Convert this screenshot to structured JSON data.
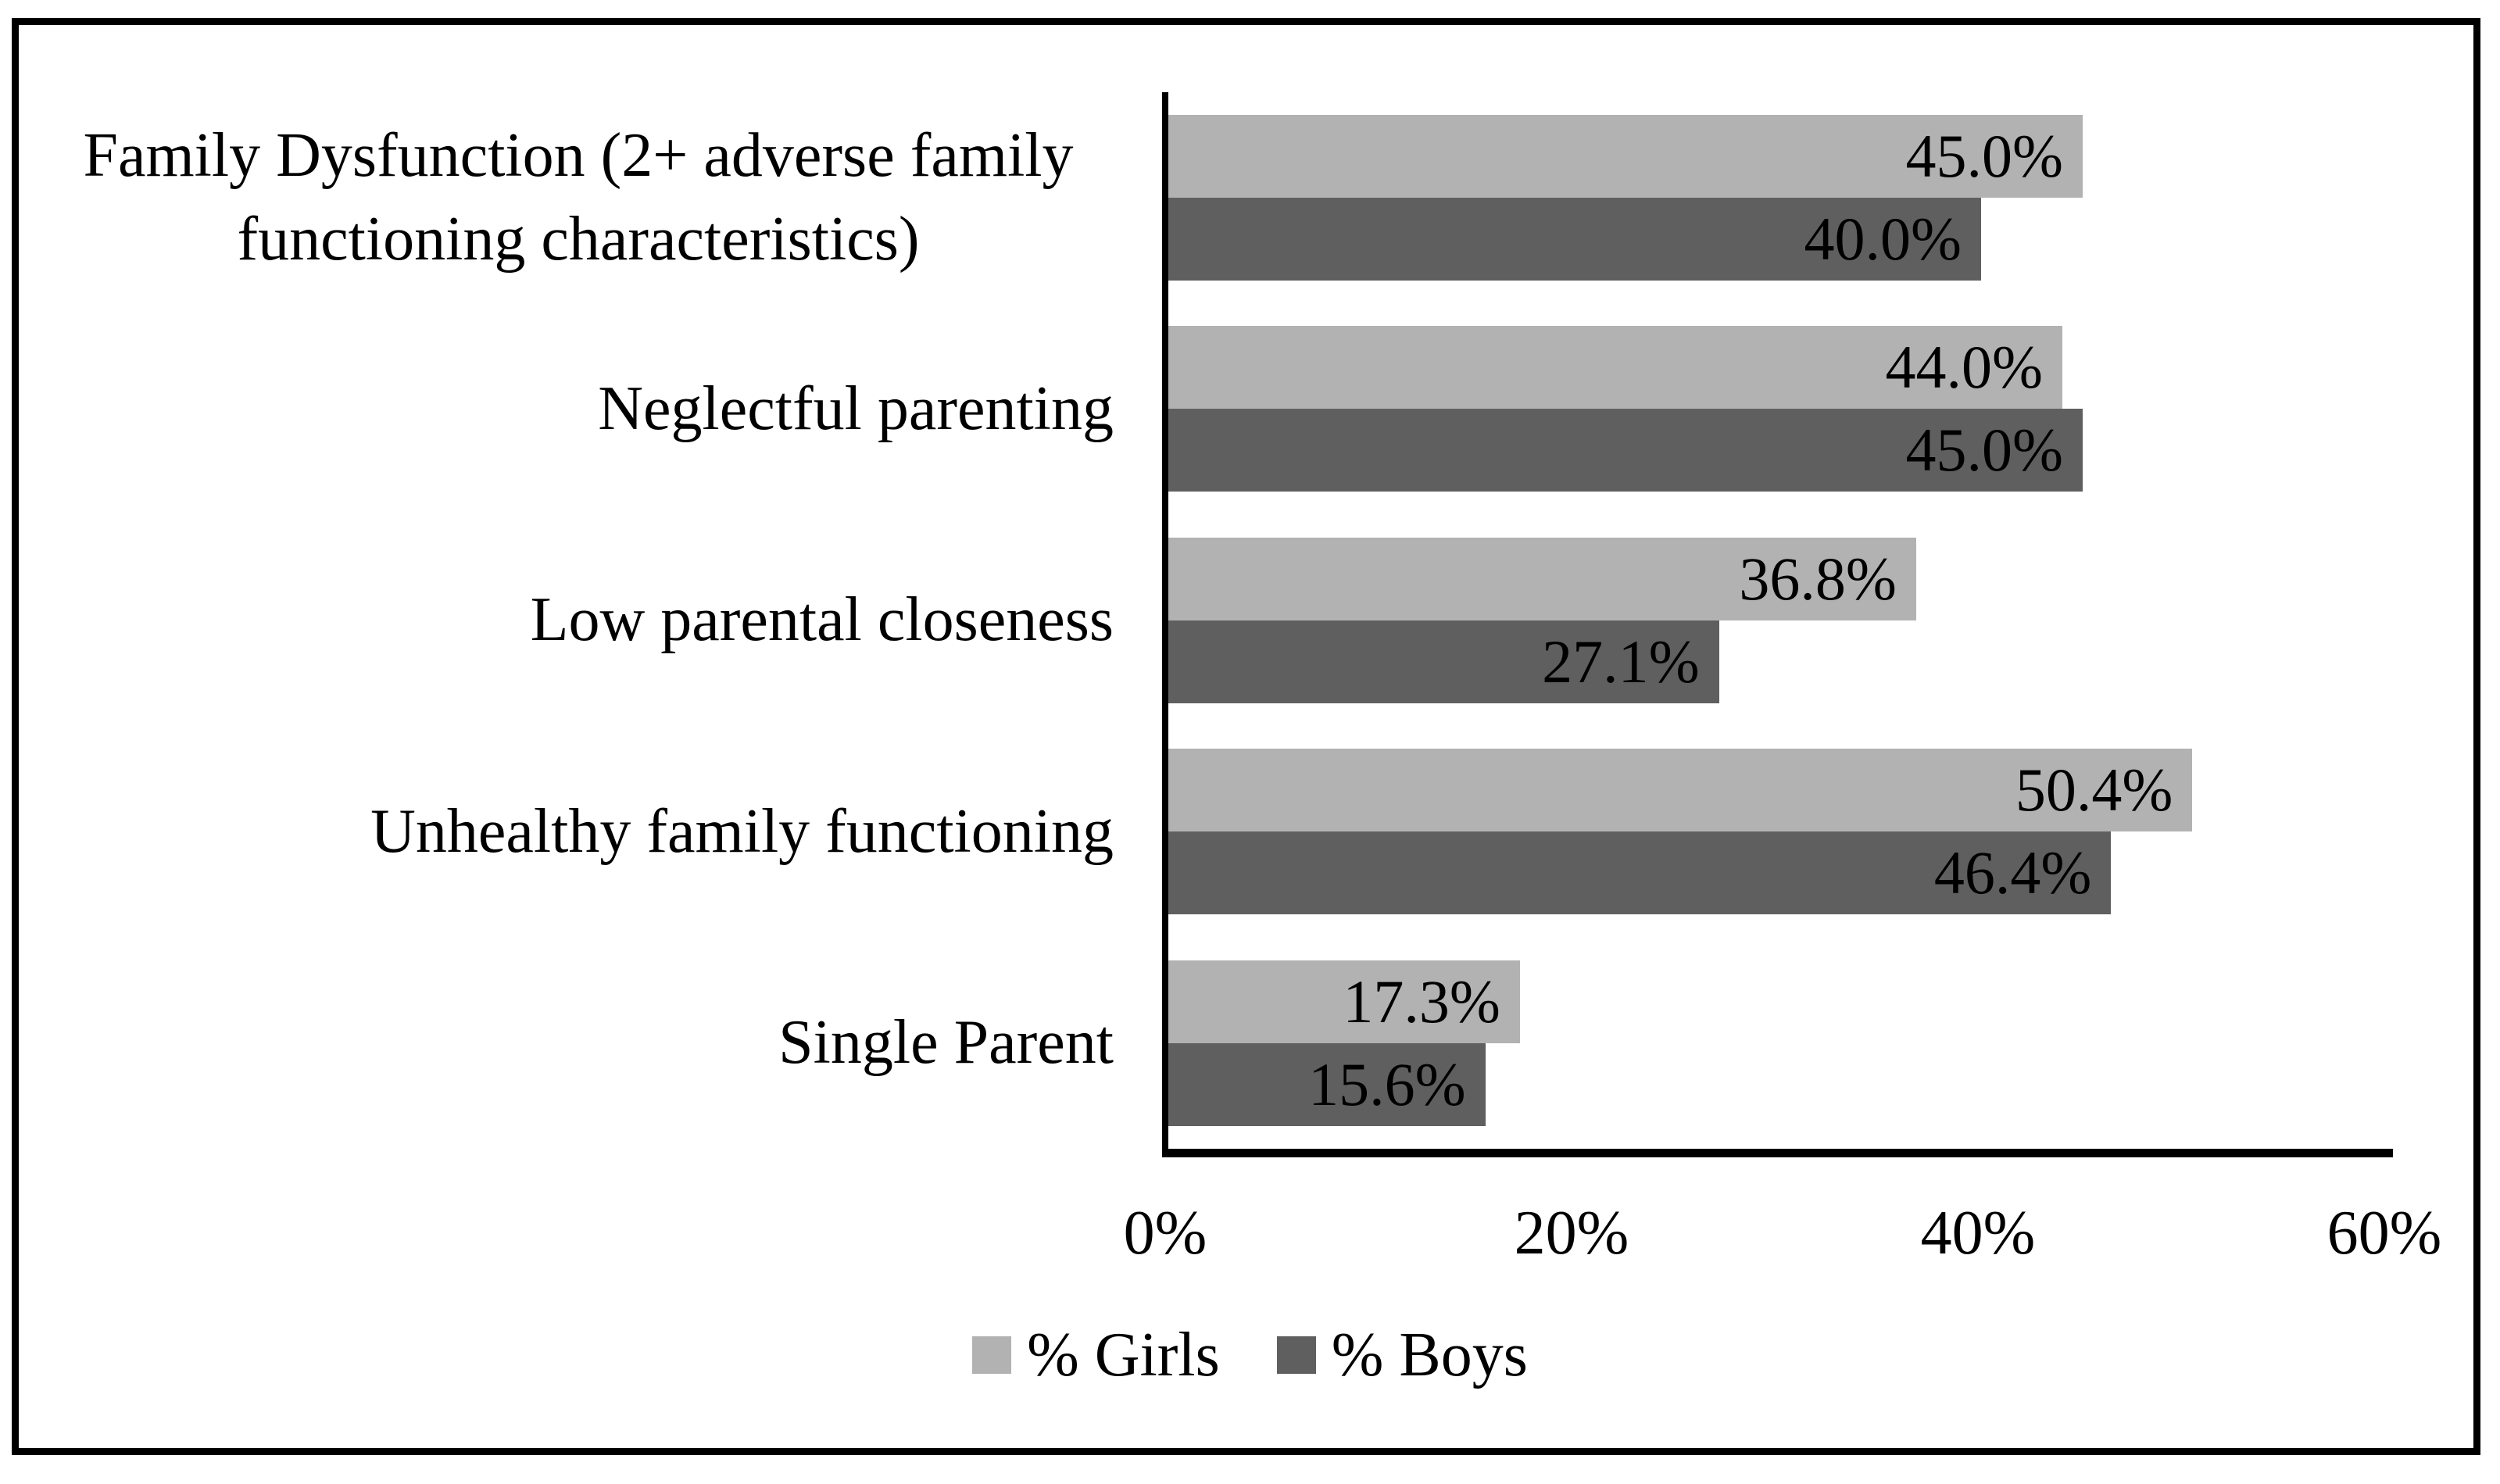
{
  "chart_data": {
    "type": "bar",
    "orientation": "horizontal",
    "title": "",
    "xlabel": "",
    "ylabel": "",
    "categories": [
      "Family Dysfunction (2+ adverse family functioning characteristics)",
      "Neglectful parenting",
      "Low parental closeness",
      "Unhealthy family functioning",
      "Single Parent"
    ],
    "series": [
      {
        "name": "% Girls",
        "color": "#b2b2b2",
        "values": [
          45.0,
          44.0,
          36.8,
          50.4,
          17.3
        ],
        "labels": [
          "45.0%",
          "44.0%",
          "36.8%",
          "50.4%",
          "17.3%"
        ]
      },
      {
        "name": "% Boys",
        "color": "#5f5f5f",
        "values": [
          40.0,
          45.0,
          27.1,
          46.4,
          15.6
        ],
        "labels": [
          "40.0%",
          "45.0%",
          "27.1%",
          "46.4%",
          "15.6%"
        ]
      }
    ],
    "x_axis": {
      "min": 0,
      "max": 60,
      "ticks": [
        {
          "label": "0%",
          "value": 0
        },
        {
          "label": "20%",
          "value": 20
        },
        {
          "label": "40%",
          "value": 40
        },
        {
          "label": "60%",
          "value": 60
        }
      ],
      "grid": false
    },
    "legend": {
      "position": "bottom",
      "entries": [
        "% Girls",
        "% Boys"
      ]
    },
    "value_label_position": "inside-end",
    "frame_color": "#000000",
    "background_color": "#ffffff"
  }
}
